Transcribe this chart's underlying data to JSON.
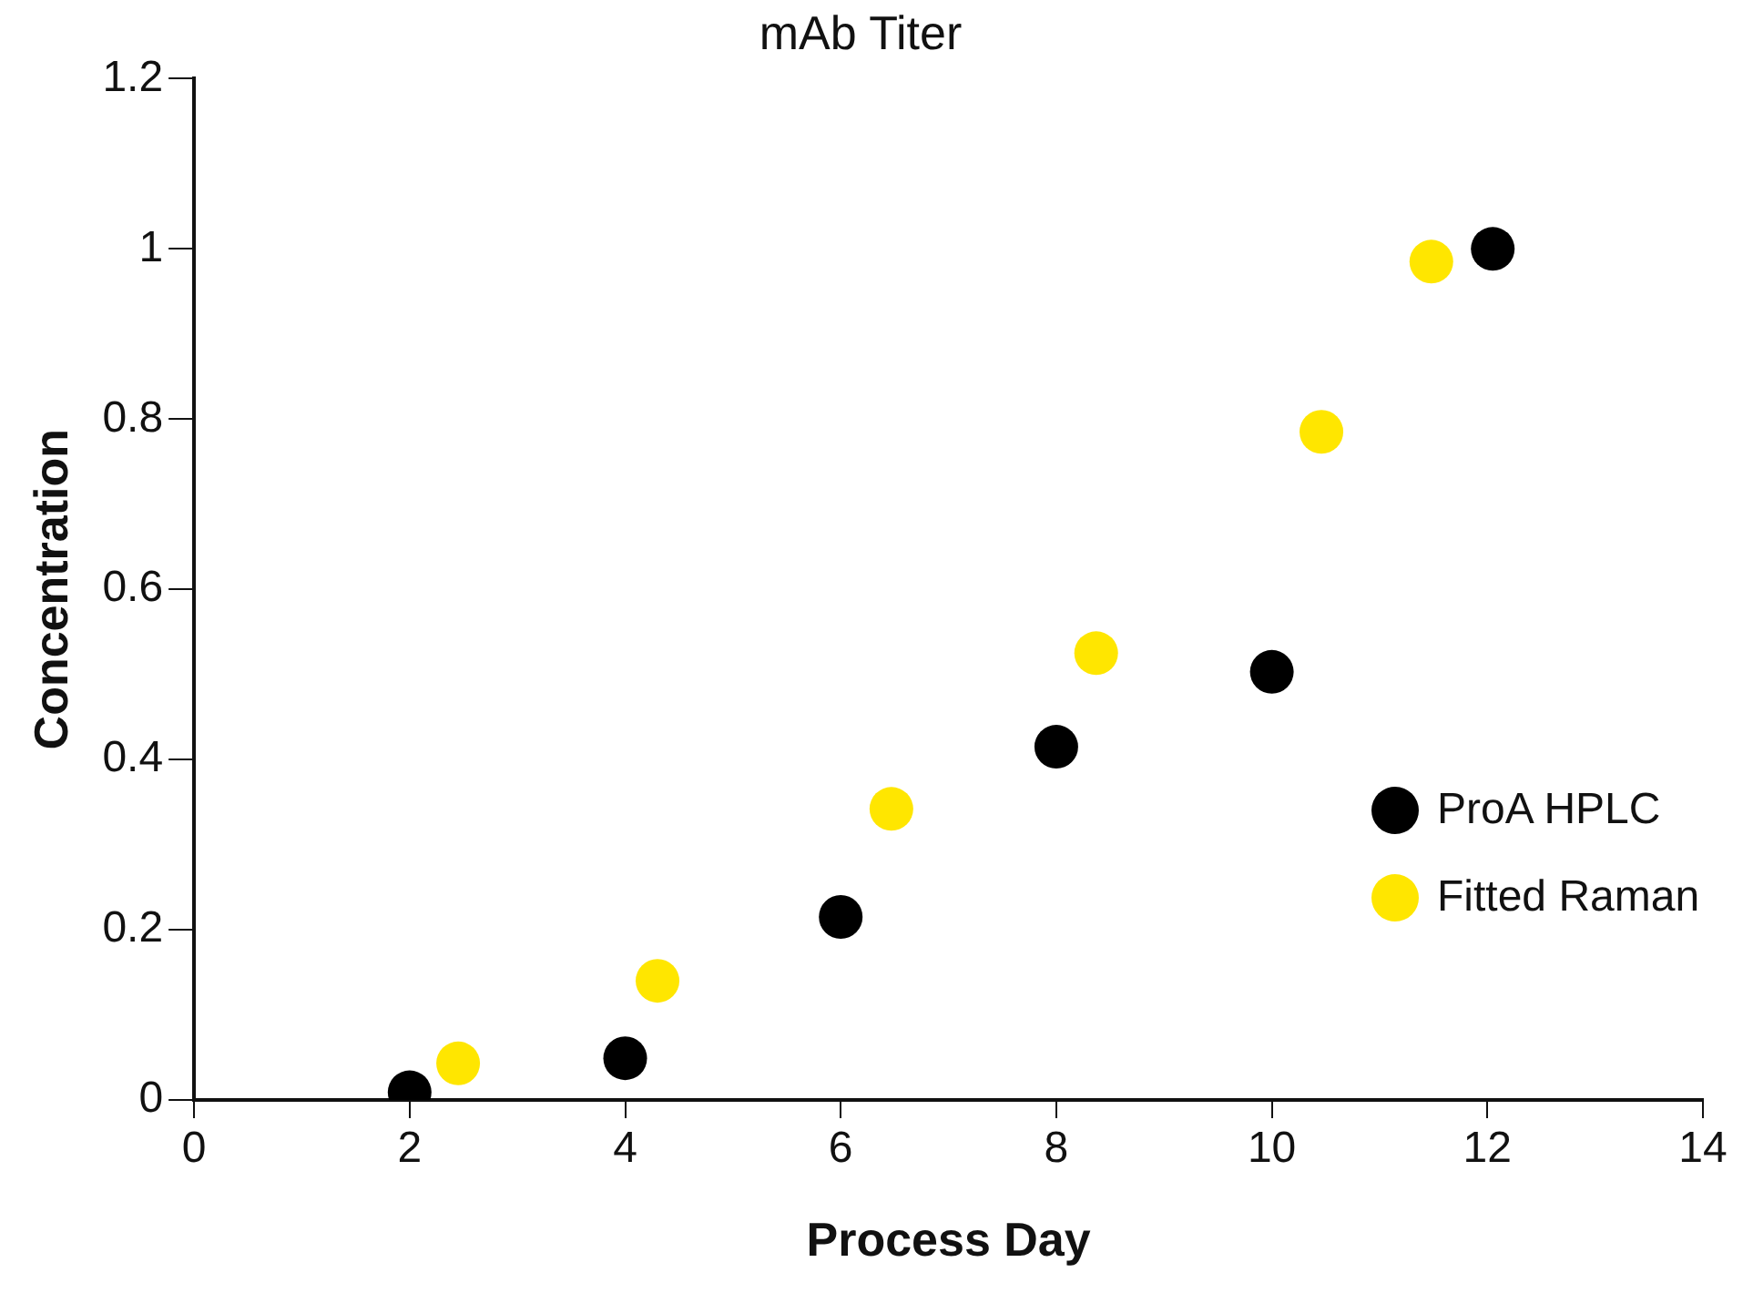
{
  "chart_data": {
    "type": "scatter",
    "title": "mAb Titer",
    "xlabel": "Process Day",
    "ylabel": "Concentration",
    "xlim": [
      0,
      14
    ],
    "xticks": [
      0,
      2,
      4,
      6,
      8,
      10,
      12,
      14
    ],
    "ylim": [
      0,
      1.2
    ],
    "yticks": [
      0,
      0.2,
      0.4,
      0.6,
      0.8,
      1,
      1.2
    ],
    "grid": false,
    "legend": "right",
    "marker": "circle",
    "series": [
      {
        "name": "ProA HPLC",
        "color": "#000000",
        "x": [
          2,
          4,
          6,
          8,
          10,
          12.05
        ],
        "values": [
          0.009,
          0.049,
          0.215,
          0.415,
          0.503,
          1.0
        ]
      },
      {
        "name": "Fitted Raman",
        "color": "#ffe600",
        "x": [
          2.45,
          4.3,
          6.47,
          8.37,
          10.46,
          11.48
        ],
        "values": [
          0.043,
          0.14,
          0.342,
          0.525,
          0.785,
          0.985
        ]
      }
    ]
  }
}
